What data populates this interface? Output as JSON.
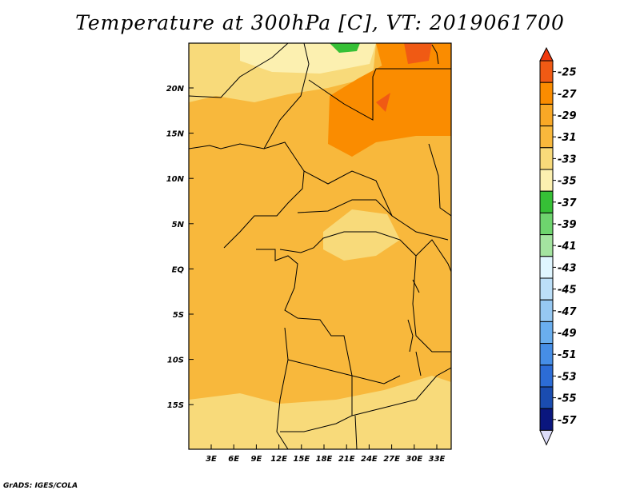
{
  "title": "Temperature at 300hPa [C], VT: 2019061700",
  "credit": "GrADS: IGES/COLA",
  "map": {
    "lon_ticks": [
      "3E",
      "6E",
      "9E",
      "12E",
      "15E",
      "18E",
      "21E",
      "24E",
      "27E",
      "30E",
      "33E"
    ],
    "lat_ticks": [
      "20N",
      "15N",
      "10N",
      "5N",
      "EQ",
      "5S",
      "10S",
      "15S"
    ]
  },
  "colorbar": {
    "labels": [
      "-25",
      "-27",
      "-29",
      "-31",
      "-33",
      "-35",
      "-37",
      "-39",
      "-41",
      "-43",
      "-45",
      "-47",
      "-49",
      "-51",
      "-53",
      "-55",
      "-57"
    ],
    "colors": [
      "#f05a14",
      "#fa8c00",
      "#f8a826",
      "#f8b83c",
      "#f8da7a",
      "#fcf0b0",
      "#36c036",
      "#6ed46e",
      "#a4e4a0",
      "#e0f6ff",
      "#bcdff8",
      "#96c8f2",
      "#6aaeee",
      "#468ee6",
      "#2c6cd6",
      "#1a4cb0",
      "#0a167e"
    ],
    "top_color": "#f03a0e",
    "bottom_color": "#dcdcf8"
  }
}
